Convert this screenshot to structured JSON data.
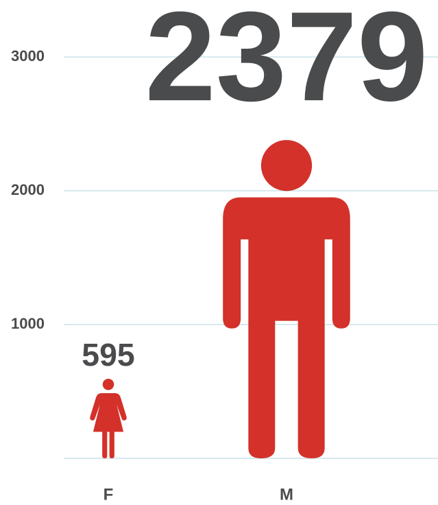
{
  "chart_data": {
    "type": "pictograph",
    "categories": [
      "F",
      "M"
    ],
    "values": [
      595,
      2379
    ],
    "color": "#d3312a",
    "ylim": [
      0,
      3000
    ],
    "yticks": [
      1000,
      2000,
      3000
    ],
    "grid": true
  }
}
